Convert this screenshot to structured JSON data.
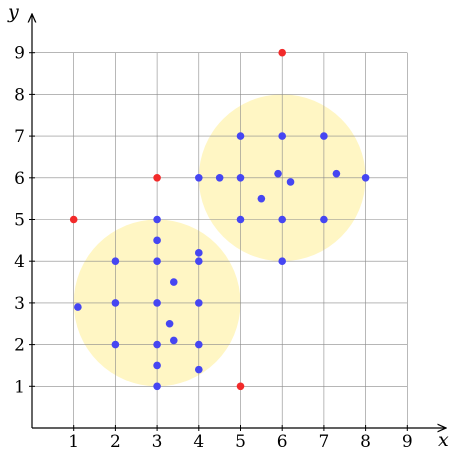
{
  "chart_data": {
    "type": "scatter",
    "xlabel": "x",
    "ylabel": "y",
    "xlim": [
      0,
      9
    ],
    "ylim": [
      0,
      9
    ],
    "xticks": [
      "1",
      "2",
      "3",
      "4",
      "5",
      "6",
      "7",
      "8",
      "9"
    ],
    "yticks": [
      "1",
      "2",
      "3",
      "4",
      "5",
      "6",
      "7",
      "8",
      "9"
    ],
    "grid": true,
    "regions": [
      {
        "cx": 3,
        "cy": 3,
        "r": 2,
        "color": "#fff6c4"
      },
      {
        "cx": 6,
        "cy": 6,
        "r": 2,
        "color": "#fff6c4"
      }
    ],
    "series": [
      {
        "color": "#4646f2",
        "points": [
          [
            1.1,
            2.9
          ],
          [
            2,
            2
          ],
          [
            2,
            3
          ],
          [
            2,
            4
          ],
          [
            3,
            1
          ],
          [
            3,
            1.5
          ],
          [
            3,
            2
          ],
          [
            3,
            3
          ],
          [
            3,
            4
          ],
          [
            3,
            4.5
          ],
          [
            3,
            5
          ],
          [
            3.3,
            2.5
          ],
          [
            3.4,
            2.1
          ],
          [
            3.4,
            3.5
          ],
          [
            4,
            1.4
          ],
          [
            4,
            2
          ],
          [
            4,
            3
          ],
          [
            4,
            4
          ],
          [
            4,
            4.2
          ],
          [
            4,
            6
          ],
          [
            4.5,
            6
          ],
          [
            5,
            5
          ],
          [
            5,
            6
          ],
          [
            5,
            7
          ],
          [
            5.5,
            5.5
          ],
          [
            5.9,
            6.1
          ],
          [
            6,
            4
          ],
          [
            6,
            5
          ],
          [
            6,
            7
          ],
          [
            6.2,
            5.9
          ],
          [
            7,
            5
          ],
          [
            7,
            7
          ],
          [
            7.3,
            6.1
          ],
          [
            8,
            6
          ]
        ]
      },
      {
        "color": "#f22a2a",
        "points": [
          [
            1,
            5
          ],
          [
            3,
            6
          ],
          [
            5,
            1
          ],
          [
            6,
            9
          ]
        ]
      }
    ]
  }
}
